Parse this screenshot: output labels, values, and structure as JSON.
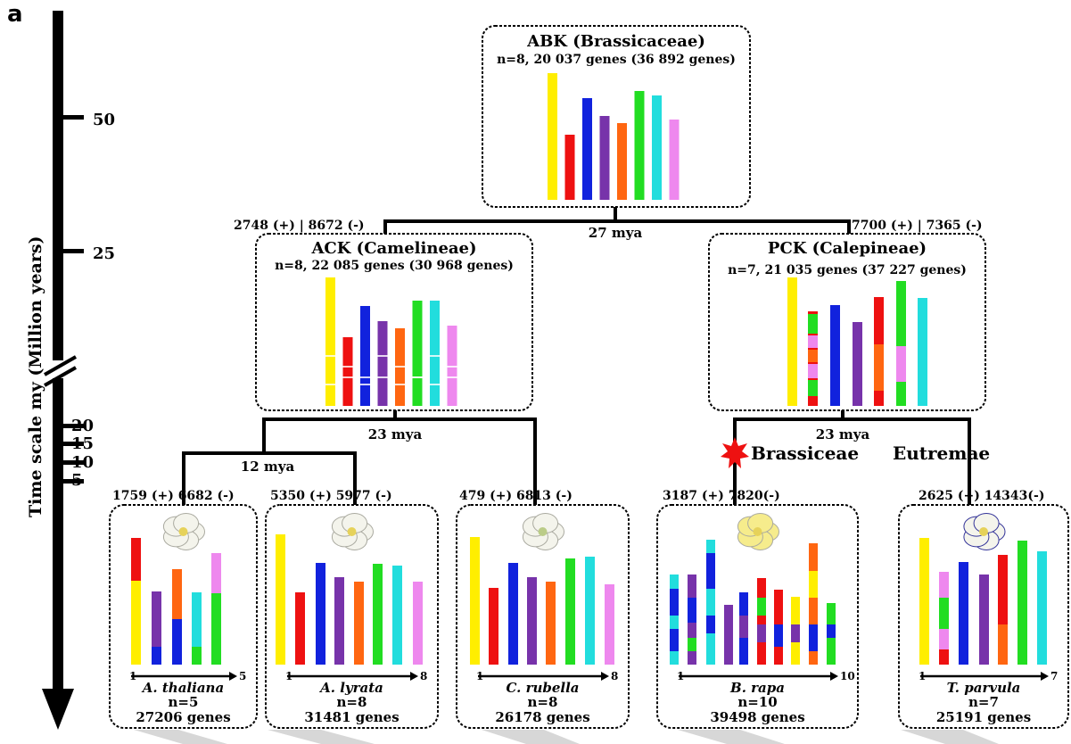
{
  "panel_label": "a",
  "axis": {
    "title": "Time scale my (Million years)",
    "ticks": [
      "50",
      "25",
      "20",
      "15",
      "10",
      "5"
    ]
  },
  "colors": {
    "yellow": "#ffee00",
    "red": "#ee1111",
    "blue": "#1122dd",
    "purple": "#7733aa",
    "orange": "#ff6611",
    "green": "#22dd22",
    "cyan": "#22dddd",
    "pink": "#ee88ee"
  },
  "ancestors": {
    "abk": {
      "title": "ABK (Brassicaceae)",
      "subtitle": "n=8, 20 037 genes (36 892 genes)"
    },
    "ack": {
      "title": "ACK (Camelineae)",
      "subtitle": "n=8, 22 085 genes (30 968 genes)"
    },
    "pck": {
      "title": "PCK (Calepineae)",
      "subtitle": "n=7, 21 035 genes (37 227 genes)"
    }
  },
  "branches": {
    "ack_gains": "2748 (+) | 8672 (-)",
    "pck_gains": "7700 (+) | 7365 (-)",
    "root_age": "27 mya",
    "ack_split_age": "23 mya",
    "pck_split_age": "23 mya",
    "arab_split_age": "12 mya",
    "brassiceae": "Brassiceae",
    "eutremae": "Eutremae"
  },
  "species": [
    {
      "name": "A. thaliana",
      "n": "n=5",
      "genes": "27206 genes",
      "gains": "1759 (+) 6682 (-)",
      "start": "1",
      "end": "5"
    },
    {
      "name": "A. lyrata",
      "n": "n=8",
      "genes": "31481 genes",
      "gains": "5350 (+) 5977 (-)",
      "start": "1",
      "end": "8"
    },
    {
      "name": "C. rubella",
      "n": "n=8",
      "genes": "26178 genes",
      "gains": "479 (+) 6813 (-)",
      "start": "1",
      "end": "8"
    },
    {
      "name": "B. rapa",
      "n": "n=10",
      "genes": "39498 genes",
      "gains": "3187 (+) 7820(-)",
      "start": "1",
      "end": "10"
    },
    {
      "name": "T. parvula",
      "n": "n=7",
      "genes": "25191 genes",
      "gains": "2625 (+) 14343(-)",
      "start": "1",
      "end": "7"
    }
  ]
}
